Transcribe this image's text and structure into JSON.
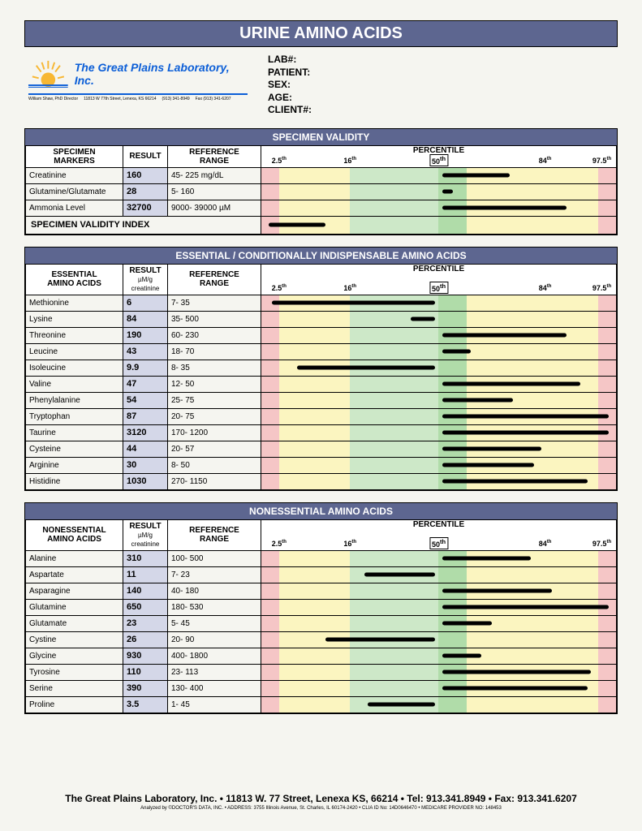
{
  "report_title": "URINE AMINO ACIDS",
  "lab_name": "The Great Plains Laboratory, Inc.",
  "logo_footer_left": "William Shaw, PhD   Director",
  "logo_footer_addr": "11813 W 77th Street, Lenexa, KS 66214",
  "logo_footer_tel": "(913) 341-8949",
  "logo_footer_fax": "Fax (913) 341-6207",
  "patient_fields": {
    "lab": "LAB#:",
    "patient": "PATIENT:",
    "sex": "SEX:",
    "age": "AGE:",
    "client": "CLIENT#:"
  },
  "percentile_header": "PERCENTILE",
  "percentile_ticks": [
    {
      "label": "2.5",
      "sup": "th",
      "pos": 5
    },
    {
      "label": "16",
      "sup": "th",
      "pos": 25
    },
    {
      "label": "50",
      "sup": "th",
      "pos": 50,
      "boxed": true
    },
    {
      "label": "84",
      "sup": "th",
      "pos": 80
    },
    {
      "label": "97.5",
      "sup": "th",
      "pos": 96
    }
  ],
  "columns": {
    "markers": "SPECIMEN MARKERS",
    "essential": "ESSENTIAL AMINO ACIDS",
    "nonessential": "NONESSENTIAL AMINO ACIDS",
    "result": "RESULT",
    "result_sub": "µM/g creatinine",
    "ref": "REFERENCE RANGE"
  },
  "sections": [
    {
      "title": "SPECIMEN VALIDITY",
      "col1_label": "SPECIMEN MARKERS",
      "result_sub": "",
      "rows": [
        {
          "name": "Creatinine",
          "result": "160",
          "range": "45- 225      mg/dL",
          "bar_start": 51,
          "bar_end": 70
        },
        {
          "name": "Glutamine/Glutamate",
          "result": "28",
          "range": "5- 160",
          "bar_start": 51,
          "bar_end": 54
        },
        {
          "name": "Ammonia Level",
          "result": "32700",
          "range": "9000- 39000 µM",
          "bar_start": 51,
          "bar_end": 86
        }
      ],
      "index_row": {
        "label": "SPECIMEN VALIDITY INDEX",
        "bar_start": 2,
        "bar_end": 18
      }
    },
    {
      "title": "ESSENTIAL / CONDITIONALLY INDISPENSABLE AMINO ACIDS",
      "col1_label": "ESSENTIAL AMINO ACIDS",
      "result_sub": "µM/g creatinine",
      "rows": [
        {
          "name": "Methionine",
          "result": "6",
          "range": "7-  35",
          "bar_start": 3,
          "bar_end": 49
        },
        {
          "name": "Lysine",
          "result": "84",
          "range": "35-  500",
          "bar_start": 42,
          "bar_end": 49
        },
        {
          "name": "Threonine",
          "result": "190",
          "range": "60-  230",
          "bar_start": 51,
          "bar_end": 86
        },
        {
          "name": "Leucine",
          "result": "43",
          "range": "18-   70",
          "bar_start": 51,
          "bar_end": 59
        },
        {
          "name": "Isoleucine",
          "result": "9.9",
          "range": "8-  35",
          "bar_start": 10,
          "bar_end": 49
        },
        {
          "name": "Valine",
          "result": "47",
          "range": "12-   50",
          "bar_start": 51,
          "bar_end": 90
        },
        {
          "name": "Phenylalanine",
          "result": "54",
          "range": "25-   75",
          "bar_start": 51,
          "bar_end": 71
        },
        {
          "name": "Tryptophan",
          "result": "87",
          "range": "20-   75",
          "bar_start": 51,
          "bar_end": 98
        },
        {
          "name": "Taurine",
          "result": "3120",
          "range": "170-  1200",
          "bar_start": 51,
          "bar_end": 98
        },
        {
          "name": "Cysteine",
          "result": "44",
          "range": "20-   57",
          "bar_start": 51,
          "bar_end": 79
        },
        {
          "name": "Arginine",
          "result": "30",
          "range": "8-   50",
          "bar_start": 51,
          "bar_end": 77
        },
        {
          "name": "Histidine",
          "result": "1030",
          "range": "270-  1150",
          "bar_start": 51,
          "bar_end": 92
        }
      ]
    },
    {
      "title": "NONESSENTIAL AMINO ACIDS",
      "col1_label": "NONESSENTIAL AMINO ACIDS",
      "result_sub": "µM/g creatinine",
      "rows": [
        {
          "name": "Alanine",
          "result": "310",
          "range": "100-  500",
          "bar_start": 51,
          "bar_end": 76
        },
        {
          "name": "Aspartate",
          "result": "11",
          "range": "7-  23",
          "bar_start": 29,
          "bar_end": 49
        },
        {
          "name": "Asparagine",
          "result": "140",
          "range": "40-  180",
          "bar_start": 51,
          "bar_end": 82
        },
        {
          "name": "Glutamine",
          "result": "650",
          "range": "180-   530",
          "bar_start": 51,
          "bar_end": 98
        },
        {
          "name": "Glutamate",
          "result": "23",
          "range": "5-  45",
          "bar_start": 51,
          "bar_end": 65
        },
        {
          "name": "Cystine",
          "result": "26",
          "range": "20-   90",
          "bar_start": 18,
          "bar_end": 49
        },
        {
          "name": "Glycine",
          "result": "930",
          "range": "400-  1800",
          "bar_start": 51,
          "bar_end": 62
        },
        {
          "name": "Tyrosine",
          "result": "110",
          "range": "23-  113",
          "bar_start": 51,
          "bar_end": 93
        },
        {
          "name": "Serine",
          "result": "390",
          "range": "130-  400",
          "bar_start": 51,
          "bar_end": 92
        },
        {
          "name": "Proline",
          "result": "3.5",
          "range": "1-  45",
          "bar_start": 30,
          "bar_end": 49
        }
      ]
    }
  ],
  "footer_main": "The Great Plains Laboratory, Inc. • 11813 W. 77 Street, Lenexa KS, 66214 • Tel:  913.341.8949 • Fax:  913.341.6207",
  "footer_sub": "Analyzed by ©DOCTOR'S DATA, INC. • ADDRESS: 3755 Illinois Avenue, St. Charles, IL 60174-2420 • CLIA ID No: 14D0646470 • MEDICARE PROVIDER NO: 148453",
  "colors": {
    "header_bg": "#5d6690",
    "result_bg": "#d4d7e8",
    "red": "#f5c6c6",
    "yellow": "#fbf5c0",
    "green_light": "#cde8c8",
    "green_dark": "#b0dca9"
  }
}
